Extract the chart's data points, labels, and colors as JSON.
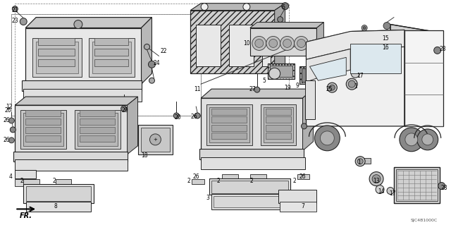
{
  "background_color": "#ffffff",
  "border_color": "#aaaaaa",
  "text_color": "#000000",
  "diagram_code": "SJC4B1000C",
  "figsize": [
    6.4,
    3.19
  ],
  "dpi": 100,
  "line_color": "#222222",
  "gray_fill": "#d8d8d8",
  "dark_fill": "#a0a0a0",
  "light_fill": "#eeeeee"
}
